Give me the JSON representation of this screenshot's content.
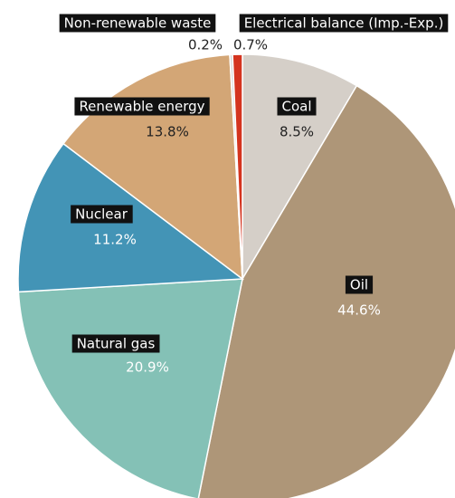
{
  "chart_data": {
    "type": "pie",
    "categories": [
      "Coal",
      "Oil",
      "Natural gas",
      "Nuclear",
      "Renewable energy",
      "Non-renewable waste",
      "Electrical balance (Imp.-Exp.)"
    ],
    "values": [
      8.5,
      44.6,
      20.9,
      11.2,
      13.8,
      0.2,
      0.7
    ],
    "value_labels": [
      "8.5%",
      "44.6%",
      "20.9%",
      "11.2%",
      "13.8%",
      "0.2%",
      "0.7%"
    ],
    "colors": [
      "#d5cfc8",
      "#ae9678",
      "#84c1b6",
      "#4394b6",
      "#d3a676",
      "#d9d9d9",
      "#d4341f"
    ]
  }
}
